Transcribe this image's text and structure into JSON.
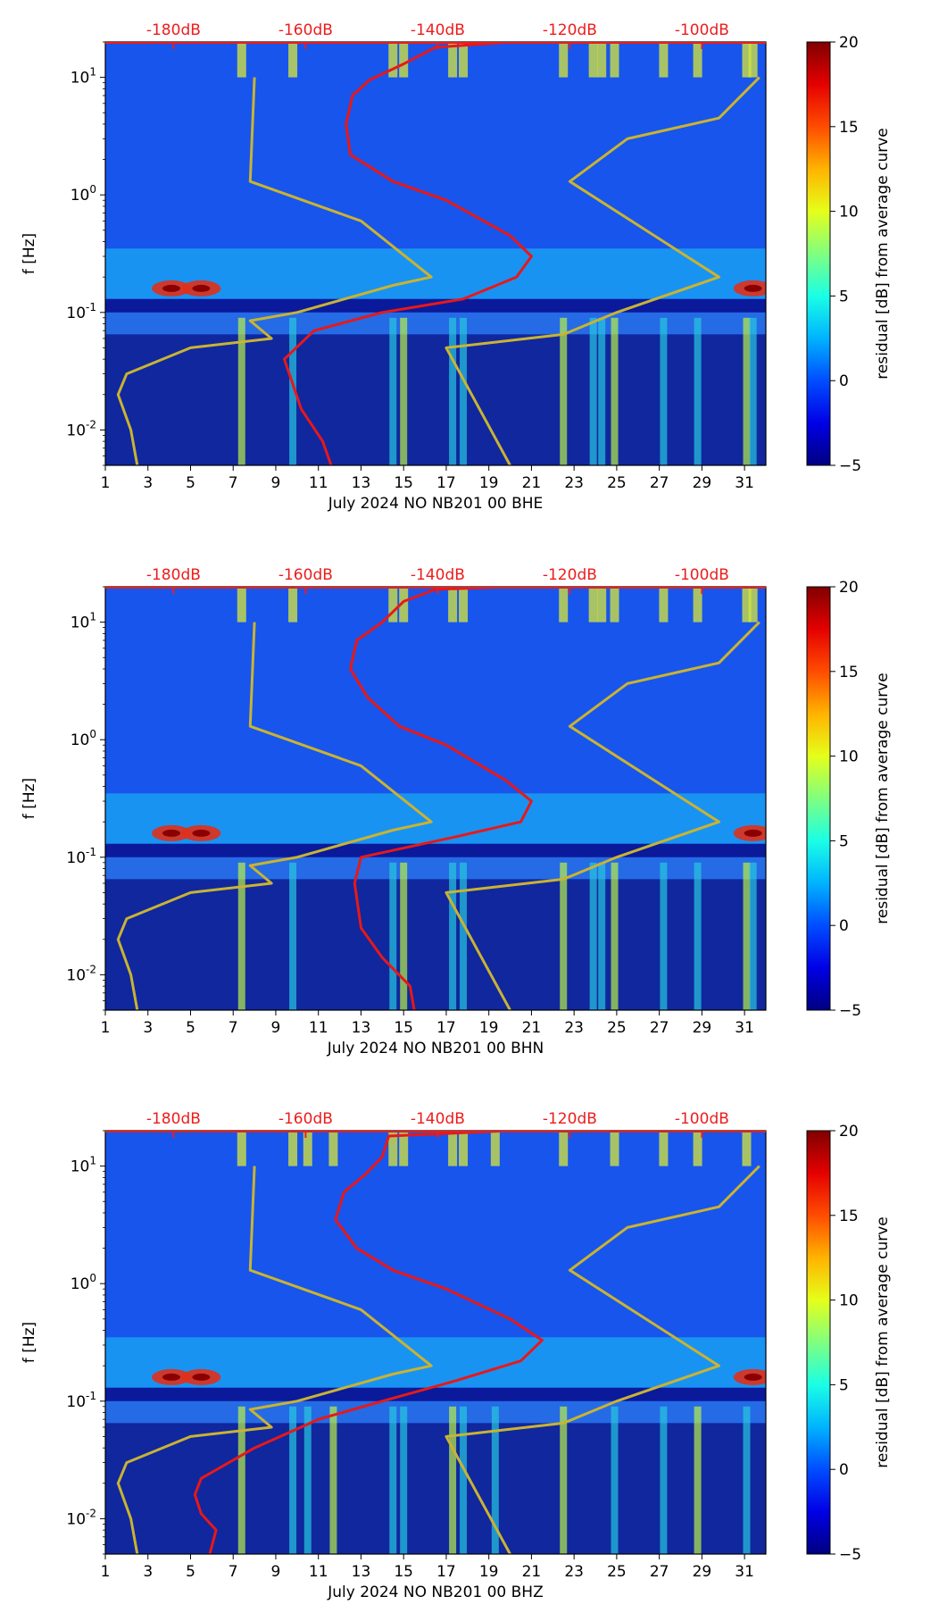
{
  "chart_data": [
    {
      "type": "heatmap",
      "component": "BHE",
      "xlabel": "July 2024 NO NB201 00 BHE",
      "ylabel": "f [Hz]",
      "x_ticks": [
        "1",
        "3",
        "5",
        "7",
        "9",
        "11",
        "13",
        "15",
        "17",
        "19",
        "21",
        "23",
        "25",
        "27",
        "29",
        "31"
      ],
      "y_ticks": [
        "10^-2",
        "10^-1",
        "10^0",
        "10^1"
      ],
      "xlim": [
        1,
        32
      ],
      "ylim_hz": [
        0.005,
        20
      ],
      "db_scale_labels": [
        "-180dB",
        "-160dB",
        "-140dB",
        "-120dB",
        "-100dB"
      ],
      "db_scale_positions_day": [
        4.2,
        10.4,
        16.6,
        22.8,
        29.0
      ],
      "colorbar": {
        "label": "residual [dB] from average curve",
        "ticks": [
          "20",
          "15",
          "10",
          "5",
          "0",
          "−5"
        ],
        "range": [
          -5,
          20
        ]
      },
      "warm_columns_day": [
        7.4,
        9.8,
        14.5,
        15.0,
        17.3,
        17.8,
        22.5,
        23.9,
        24.3,
        24.9,
        27.2,
        28.8,
        31.1,
        31.4
      ],
      "hot_spots": [
        {
          "day": 4.1,
          "hz": 0.16
        },
        {
          "day": 5.5,
          "hz": 0.16
        },
        {
          "day": 31.4,
          "hz": 0.16
        }
      ],
      "series": [
        {
          "name": "average residual curve (dB scale)",
          "color": "#e81818",
          "points": [
            [
              11.6,
              0.005
            ],
            [
              11.2,
              0.008
            ],
            [
              10.2,
              0.015
            ],
            [
              9.4,
              0.04
            ],
            [
              10.8,
              0.07
            ],
            [
              14.0,
              0.1
            ],
            [
              17.8,
              0.13
            ],
            [
              20.3,
              0.2
            ],
            [
              21.0,
              0.3
            ],
            [
              20.0,
              0.45
            ],
            [
              17.0,
              0.9
            ],
            [
              14.5,
              1.3
            ],
            [
              12.5,
              2.2
            ],
            [
              12.3,
              4.0
            ],
            [
              12.6,
              7.0
            ],
            [
              13.4,
              9.5
            ],
            [
              15.0,
              13
            ],
            [
              16.5,
              18
            ],
            [
              20.0,
              20
            ]
          ]
        },
        {
          "name": "low noise model (dB scale)",
          "color": "#c9b332",
          "points": [
            [
              2.5,
              0.005
            ],
            [
              2.2,
              0.01
            ],
            [
              1.6,
              0.02
            ],
            [
              2.0,
              0.03
            ],
            [
              5.0,
              0.05
            ],
            [
              8.8,
              0.06
            ],
            [
              7.8,
              0.085
            ],
            [
              10.0,
              0.1
            ],
            [
              14.5,
              0.17
            ],
            [
              16.3,
              0.2
            ],
            [
              13.0,
              0.6
            ],
            [
              7.8,
              1.3
            ],
            [
              8.0,
              10
            ]
          ]
        },
        {
          "name": "high noise model (dB scale)",
          "color": "#c9b332",
          "points": [
            [
              20.0,
              0.005
            ],
            [
              17.0,
              0.05
            ],
            [
              22.5,
              0.065
            ],
            [
              25.0,
              0.1
            ],
            [
              29.8,
              0.2
            ],
            [
              22.8,
              1.3
            ],
            [
              25.5,
              3.0
            ],
            [
              29.8,
              4.5
            ],
            [
              31.7,
              10
            ]
          ]
        }
      ]
    },
    {
      "type": "heatmap",
      "component": "BHN",
      "xlabel": "July 2024 NO NB201 00 BHN",
      "ylabel": "f [Hz]",
      "x_ticks": [
        "1",
        "3",
        "5",
        "7",
        "9",
        "11",
        "13",
        "15",
        "17",
        "19",
        "21",
        "23",
        "25",
        "27",
        "29",
        "31"
      ],
      "y_ticks": [
        "10^-2",
        "10^-1",
        "10^0",
        "10^1"
      ],
      "xlim": [
        1,
        32
      ],
      "ylim_hz": [
        0.005,
        20
      ],
      "db_scale_labels": [
        "-180dB",
        "-160dB",
        "-140dB",
        "-120dB",
        "-100dB"
      ],
      "db_scale_positions_day": [
        4.2,
        10.4,
        16.6,
        22.8,
        29.0
      ],
      "colorbar": {
        "label": "residual [dB] from average curve",
        "ticks": [
          "20",
          "15",
          "10",
          "5",
          "0",
          "−5"
        ],
        "range": [
          -5,
          20
        ]
      },
      "warm_columns_day": [
        7.4,
        9.8,
        14.5,
        15.0,
        17.3,
        17.8,
        22.5,
        23.9,
        24.3,
        24.9,
        27.2,
        28.8,
        31.1,
        31.4
      ],
      "hot_spots": [
        {
          "day": 4.1,
          "hz": 0.16
        },
        {
          "day": 5.5,
          "hz": 0.16
        },
        {
          "day": 31.4,
          "hz": 0.16
        }
      ],
      "series": [
        {
          "name": "average residual curve (dB scale)",
          "color": "#e81818",
          "points": [
            [
              15.5,
              0.005
            ],
            [
              15.3,
              0.008
            ],
            [
              14.0,
              0.014
            ],
            [
              13.0,
              0.025
            ],
            [
              12.7,
              0.06
            ],
            [
              13.0,
              0.1
            ],
            [
              17.5,
              0.15
            ],
            [
              20.5,
              0.2
            ],
            [
              21.0,
              0.3
            ],
            [
              19.8,
              0.45
            ],
            [
              17.0,
              0.9
            ],
            [
              14.8,
              1.3
            ],
            [
              13.3,
              2.3
            ],
            [
              12.5,
              4.0
            ],
            [
              12.8,
              7.0
            ],
            [
              14.0,
              10
            ],
            [
              15.0,
              15
            ],
            [
              16.5,
              19
            ],
            [
              20.0,
              20
            ]
          ]
        },
        {
          "name": "low noise model (dB scale)",
          "color": "#c9b332",
          "points": [
            [
              2.5,
              0.005
            ],
            [
              2.2,
              0.01
            ],
            [
              1.6,
              0.02
            ],
            [
              2.0,
              0.03
            ],
            [
              5.0,
              0.05
            ],
            [
              8.8,
              0.06
            ],
            [
              7.8,
              0.085
            ],
            [
              10.0,
              0.1
            ],
            [
              14.5,
              0.17
            ],
            [
              16.3,
              0.2
            ],
            [
              13.0,
              0.6
            ],
            [
              7.8,
              1.3
            ],
            [
              8.0,
              10
            ]
          ]
        },
        {
          "name": "high noise model (dB scale)",
          "color": "#c9b332",
          "points": [
            [
              20.0,
              0.005
            ],
            [
              17.0,
              0.05
            ],
            [
              22.5,
              0.065
            ],
            [
              25.0,
              0.1
            ],
            [
              29.8,
              0.2
            ],
            [
              22.8,
              1.3
            ],
            [
              25.5,
              3.0
            ],
            [
              29.8,
              4.5
            ],
            [
              31.7,
              10
            ]
          ]
        }
      ]
    },
    {
      "type": "heatmap",
      "component": "BHZ",
      "xlabel": "July 2024 NO NB201 00 BHZ",
      "ylabel": "f [Hz]",
      "x_ticks": [
        "1",
        "3",
        "5",
        "7",
        "9",
        "11",
        "13",
        "15",
        "17",
        "19",
        "21",
        "23",
        "25",
        "27",
        "29",
        "31"
      ],
      "y_ticks": [
        "10^-2",
        "10^-1",
        "10^0",
        "10^1"
      ],
      "xlim": [
        1,
        32
      ],
      "ylim_hz": [
        0.005,
        20
      ],
      "db_scale_labels": [
        "-180dB",
        "-160dB",
        "-140dB",
        "-120dB",
        "-100dB"
      ],
      "db_scale_positions_day": [
        4.2,
        10.4,
        16.6,
        22.8,
        29.0
      ],
      "colorbar": {
        "label": "residual [dB] from average curve",
        "ticks": [
          "20",
          "15",
          "10",
          "5",
          "0",
          "−5"
        ],
        "range": [
          -5,
          20
        ]
      },
      "warm_columns_day": [
        7.4,
        9.8,
        10.5,
        11.7,
        14.5,
        15.0,
        17.3,
        17.8,
        19.3,
        22.5,
        24.9,
        27.2,
        28.8,
        31.1
      ],
      "hot_spots": [
        {
          "day": 4.1,
          "hz": 0.16
        },
        {
          "day": 5.5,
          "hz": 0.16
        },
        {
          "day": 31.4,
          "hz": 0.16
        }
      ],
      "series": [
        {
          "name": "average residual curve (dB scale)",
          "color": "#e81818",
          "points": [
            [
              5.9,
              0.005
            ],
            [
              6.2,
              0.008
            ],
            [
              5.5,
              0.011
            ],
            [
              5.2,
              0.016
            ],
            [
              5.5,
              0.022
            ],
            [
              8.0,
              0.04
            ],
            [
              11.0,
              0.07
            ],
            [
              14.0,
              0.1
            ],
            [
              17.5,
              0.15
            ],
            [
              20.5,
              0.22
            ],
            [
              21.5,
              0.33
            ],
            [
              20.0,
              0.5
            ],
            [
              17.0,
              0.9
            ],
            [
              14.5,
              1.3
            ],
            [
              12.8,
              2.0
            ],
            [
              11.8,
              3.5
            ],
            [
              12.2,
              6.0
            ],
            [
              13.2,
              8.5
            ],
            [
              14.0,
              12
            ],
            [
              14.3,
              18
            ],
            [
              20.0,
              20
            ]
          ]
        },
        {
          "name": "low noise model (dB scale)",
          "color": "#c9b332",
          "points": [
            [
              2.5,
              0.005
            ],
            [
              2.2,
              0.01
            ],
            [
              1.6,
              0.02
            ],
            [
              2.0,
              0.03
            ],
            [
              5.0,
              0.05
            ],
            [
              8.8,
              0.06
            ],
            [
              7.8,
              0.085
            ],
            [
              10.0,
              0.1
            ],
            [
              14.5,
              0.17
            ],
            [
              16.3,
              0.2
            ],
            [
              13.0,
              0.6
            ],
            [
              7.8,
              1.3
            ],
            [
              8.0,
              10
            ]
          ]
        },
        {
          "name": "high noise model (dB scale)",
          "color": "#c9b332",
          "points": [
            [
              20.0,
              0.005
            ],
            [
              17.0,
              0.05
            ],
            [
              22.5,
              0.065
            ],
            [
              25.0,
              0.1
            ],
            [
              29.8,
              0.2
            ],
            [
              22.8,
              1.3
            ],
            [
              25.5,
              3.0
            ],
            [
              29.8,
              4.5
            ],
            [
              31.7,
              10
            ]
          ]
        }
      ]
    }
  ]
}
